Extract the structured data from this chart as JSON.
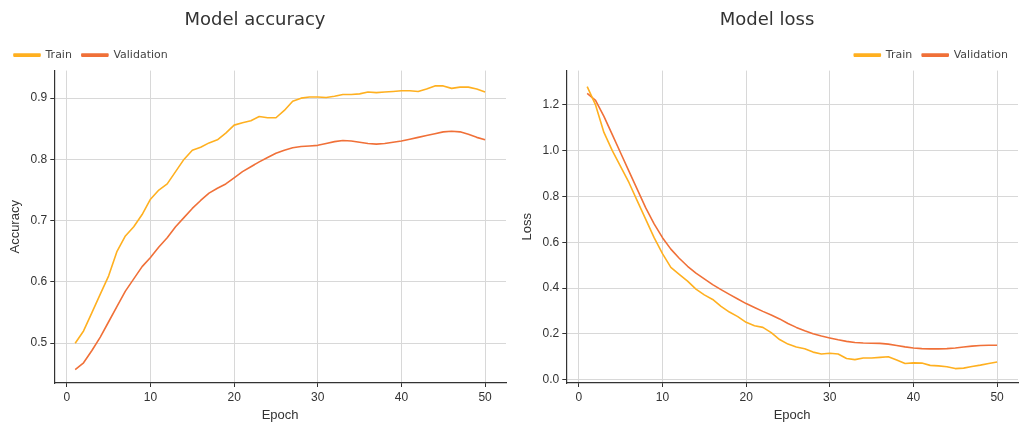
{
  "chart_data": [
    {
      "type": "line",
      "title": "Model accuracy",
      "xlabel": "Epoch",
      "ylabel": "Accuracy",
      "legend": "top left",
      "grid": true,
      "marker": "none",
      "line_style": "solid",
      "x": [
        1,
        2,
        3,
        4,
        5,
        6,
        7,
        8,
        9,
        10,
        11,
        12,
        13,
        14,
        15,
        16,
        17,
        18,
        19,
        20,
        21,
        22,
        23,
        24,
        25,
        26,
        27,
        28,
        29,
        30,
        31,
        32,
        33,
        34,
        35,
        36,
        37,
        38,
        39,
        40,
        41,
        42,
        43,
        44,
        45,
        46,
        47,
        48,
        49,
        50
      ],
      "xlim": [
        -1.5,
        52.5
      ],
      "xticks": [
        0,
        10,
        20,
        30,
        40,
        50
      ],
      "ylim": [
        0.435,
        0.945
      ],
      "yticks": [
        0.5,
        0.6,
        0.7,
        0.8,
        0.9
      ],
      "series": [
        {
          "name": "Train",
          "color": "#ffb020",
          "values": [
            0.5,
            0.52,
            0.55,
            0.58,
            0.61,
            0.65,
            0.675,
            0.69,
            0.71,
            0.735,
            0.75,
            0.76,
            0.78,
            0.8,
            0.815,
            0.82,
            0.827,
            0.832,
            0.843,
            0.856,
            0.86,
            0.863,
            0.87,
            0.868,
            0.868,
            0.88,
            0.895,
            0.9,
            0.902,
            0.902,
            0.901,
            0.903,
            0.906,
            0.906,
            0.907,
            0.91,
            0.909,
            0.91,
            0.911,
            0.912,
            0.912,
            0.911,
            0.915,
            0.92,
            0.92,
            0.916,
            0.918,
            0.918,
            0.915,
            0.91
          ]
        },
        {
          "name": "Validation",
          "color": "#f07038",
          "values": [
            0.457,
            0.468,
            0.488,
            0.51,
            0.535,
            0.56,
            0.585,
            0.605,
            0.625,
            0.64,
            0.657,
            0.672,
            0.69,
            0.705,
            0.72,
            0.733,
            0.745,
            0.753,
            0.76,
            0.77,
            0.78,
            0.788,
            0.796,
            0.803,
            0.81,
            0.815,
            0.819,
            0.821,
            0.822,
            0.823,
            0.826,
            0.829,
            0.831,
            0.83,
            0.828,
            0.826,
            0.825,
            0.826,
            0.828,
            0.83,
            0.833,
            0.836,
            0.839,
            0.842,
            0.845,
            0.846,
            0.845,
            0.841,
            0.836,
            0.832
          ]
        }
      ]
    },
    {
      "type": "line",
      "title": "Model loss",
      "xlabel": "Epoch",
      "ylabel": "Loss",
      "legend": "top right",
      "grid": true,
      "marker": "none",
      "line_style": "solid",
      "x": [
        1,
        2,
        3,
        4,
        5,
        6,
        7,
        8,
        9,
        10,
        11,
        12,
        13,
        14,
        15,
        16,
        17,
        18,
        19,
        20,
        21,
        22,
        23,
        24,
        25,
        26,
        27,
        28,
        29,
        30,
        31,
        32,
        33,
        34,
        35,
        36,
        37,
        38,
        39,
        40,
        41,
        42,
        43,
        44,
        45,
        46,
        47,
        48,
        49,
        50
      ],
      "xlim": [
        -1.5,
        52.5
      ],
      "xticks": [
        0,
        10,
        20,
        30,
        40,
        50
      ],
      "ylim": [
        -0.015,
        1.35
      ],
      "yticks": [
        {
          "value": 0,
          "label": "0.0"
        },
        0.2,
        0.4,
        0.6,
        0.8,
        {
          "value": 1,
          "label": "1.0"
        },
        1.2
      ],
      "series": [
        {
          "name": "Train",
          "color": "#ffb020",
          "values": [
            1.28,
            1.2,
            1.08,
            1.0,
            0.93,
            0.86,
            0.78,
            0.7,
            0.62,
            0.55,
            0.49,
            0.46,
            0.43,
            0.395,
            0.37,
            0.35,
            0.32,
            0.295,
            0.275,
            0.25,
            0.235,
            0.228,
            0.205,
            0.175,
            0.155,
            0.142,
            0.135,
            0.12,
            0.112,
            0.115,
            0.112,
            0.092,
            0.087,
            0.094,
            0.094,
            0.097,
            0.1,
            0.085,
            0.07,
            0.073,
            0.072,
            0.062,
            0.06,
            0.056,
            0.048,
            0.05,
            0.057,
            0.063,
            0.07,
            0.077
          ]
        },
        {
          "name": "Validation",
          "color": "#f07038",
          "values": [
            1.25,
            1.22,
            1.15,
            1.07,
            0.99,
            0.91,
            0.83,
            0.75,
            0.68,
            0.62,
            0.57,
            0.53,
            0.495,
            0.465,
            0.44,
            0.415,
            0.393,
            0.372,
            0.352,
            0.332,
            0.315,
            0.298,
            0.282,
            0.265,
            0.245,
            0.228,
            0.213,
            0.2,
            0.19,
            0.182,
            0.174,
            0.167,
            0.162,
            0.16,
            0.159,
            0.158,
            0.155,
            0.149,
            0.143,
            0.138,
            0.135,
            0.134,
            0.134,
            0.135,
            0.138,
            0.142,
            0.146,
            0.149,
            0.15,
            0.15
          ]
        }
      ]
    }
  ]
}
